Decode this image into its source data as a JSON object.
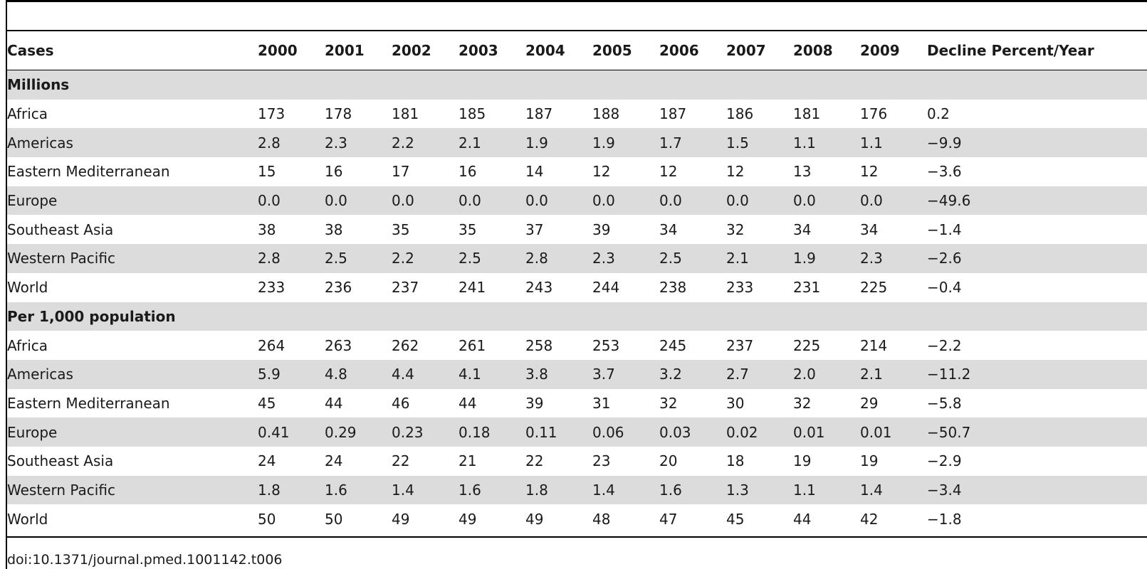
{
  "table": {
    "headers": [
      "Cases",
      "2000",
      "2001",
      "2002",
      "2003",
      "2004",
      "2005",
      "2006",
      "2007",
      "2008",
      "2009",
      "Decline Percent/Year"
    ],
    "sections": [
      {
        "title": "Millions",
        "rows": [
          {
            "label": "Africa",
            "values": [
              "173",
              "178",
              "181",
              "185",
              "187",
              "188",
              "187",
              "186",
              "181",
              "176"
            ],
            "decline": "0.2"
          },
          {
            "label": "Americas",
            "values": [
              "2.8",
              "2.3",
              "2.2",
              "2.1",
              "1.9",
              "1.9",
              "1.7",
              "1.5",
              "1.1",
              "1.1"
            ],
            "decline": "−9.9"
          },
          {
            "label": "Eastern Mediterranean",
            "values": [
              "15",
              "16",
              "17",
              "16",
              "14",
              "12",
              "12",
              "12",
              "13",
              "12"
            ],
            "decline": "−3.6"
          },
          {
            "label": "Europe",
            "values": [
              "0.0",
              "0.0",
              "0.0",
              "0.0",
              "0.0",
              "0.0",
              "0.0",
              "0.0",
              "0.0",
              "0.0"
            ],
            "decline": "−49.6"
          },
          {
            "label": "Southeast Asia",
            "values": [
              "38",
              "38",
              "35",
              "35",
              "37",
              "39",
              "34",
              "32",
              "34",
              "34"
            ],
            "decline": "−1.4"
          },
          {
            "label": "Western Pacific",
            "values": [
              "2.8",
              "2.5",
              "2.2",
              "2.5",
              "2.8",
              "2.3",
              "2.5",
              "2.1",
              "1.9",
              "2.3"
            ],
            "decline": "−2.6"
          },
          {
            "label": "World",
            "values": [
              "233",
              "236",
              "237",
              "241",
              "243",
              "244",
              "238",
              "233",
              "231",
              "225"
            ],
            "decline": "−0.4"
          }
        ]
      },
      {
        "title": "Per 1,000 population",
        "rows": [
          {
            "label": "Africa",
            "values": [
              "264",
              "263",
              "262",
              "261",
              "258",
              "253",
              "245",
              "237",
              "225",
              "214"
            ],
            "decline": "−2.2"
          },
          {
            "label": "Americas",
            "values": [
              "5.9",
              "4.8",
              "4.4",
              "4.1",
              "3.8",
              "3.7",
              "3.2",
              "2.7",
              "2.0",
              "2.1"
            ],
            "decline": "−11.2"
          },
          {
            "label": "Eastern Mediterranean",
            "values": [
              "45",
              "44",
              "46",
              "44",
              "39",
              "31",
              "32",
              "30",
              "32",
              "29"
            ],
            "decline": "−5.8"
          },
          {
            "label": "Europe",
            "values": [
              "0.41",
              "0.29",
              "0.23",
              "0.18",
              "0.11",
              "0.06",
              "0.03",
              "0.02",
              "0.01",
              "0.01"
            ],
            "decline": "−50.7"
          },
          {
            "label": "Southeast Asia",
            "values": [
              "24",
              "24",
              "22",
              "21",
              "22",
              "23",
              "20",
              "18",
              "19",
              "19"
            ],
            "decline": "−2.9"
          },
          {
            "label": "Western Pacific",
            "values": [
              "1.8",
              "1.6",
              "1.4",
              "1.6",
              "1.8",
              "1.4",
              "1.6",
              "1.3",
              "1.1",
              "1.4"
            ],
            "decline": "−3.4"
          },
          {
            "label": "World",
            "values": [
              "50",
              "50",
              "49",
              "49",
              "49",
              "48",
              "47",
              "45",
              "44",
              "42"
            ],
            "decline": "−1.8"
          }
        ]
      }
    ]
  },
  "footer": {
    "doi": "doi:10.1371/journal.pmed.1001142.t006"
  },
  "colors": {
    "shade": "#dcdcdc",
    "rule": "#000000",
    "text": "#1a1a1a"
  }
}
